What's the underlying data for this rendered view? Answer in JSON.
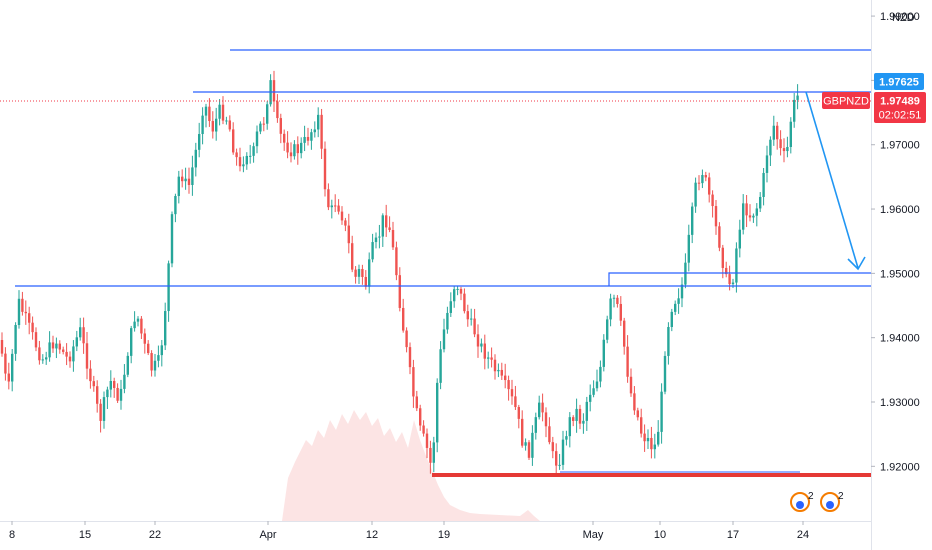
{
  "chart_data": {
    "type": "candlestick",
    "symbol": "GBPNZD",
    "currency": "NZD",
    "last_price": "1.97489",
    "countdown": "02:02:51",
    "level_label": "1.97625",
    "y_ticks": [
      "1.92000",
      "1.93000",
      "1.94000",
      "1.95000",
      "1.96000",
      "1.97000",
      "1.98000",
      "1.99000"
    ],
    "x_ticks": [
      "8",
      "15",
      "22",
      "Apr",
      "12",
      "19",
      "May",
      "10",
      "17",
      "24"
    ],
    "ylim": [
      1.9115,
      1.9925
    ],
    "levels": {
      "top_resistance": 1.9822,
      "upper_resistance": 1.97625,
      "mid_support": 1.9466,
      "target": 1.9483,
      "bottom_support": 1.9175
    },
    "badges": [
      "2",
      "2"
    ],
    "colors": {
      "up": "#26a69a",
      "down": "#ef5350",
      "line": "#2962ff",
      "price_tag": "#f23645",
      "level_tag": "#2196f3",
      "bottom_line": "#e53935"
    }
  }
}
